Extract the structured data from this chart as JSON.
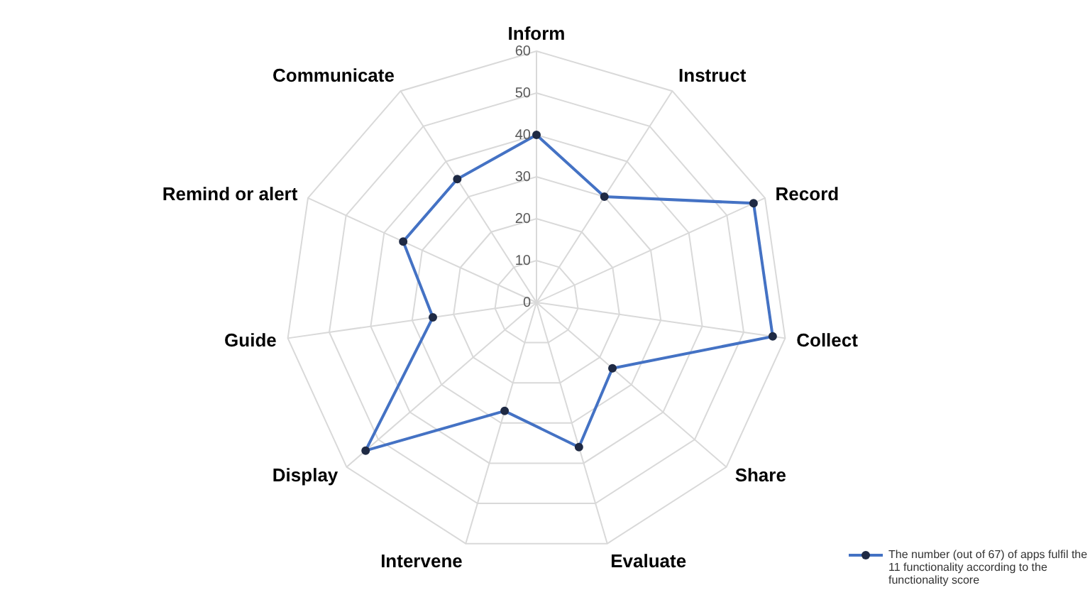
{
  "chart_data": {
    "type": "radar",
    "categories": [
      "Inform",
      "Instruct",
      "Record",
      "Collect",
      "Share",
      "Evaluate",
      "Intervene",
      "Display",
      "Guide",
      "Remind or alert",
      "Communicate"
    ],
    "series": [
      {
        "name": "The number (out of 67) of apps fulfil the 11 functionality according to the functionality score",
        "color": "#4472c4",
        "values": [
          40,
          30,
          57,
          57,
          24,
          36,
          27,
          54,
          25,
          35,
          35
        ]
      }
    ],
    "ylim": [
      0,
      60
    ],
    "yticks": [
      0,
      10,
      20,
      30,
      40,
      50,
      60
    ],
    "grid": true,
    "legend": "bottom right",
    "marker": "circle"
  }
}
